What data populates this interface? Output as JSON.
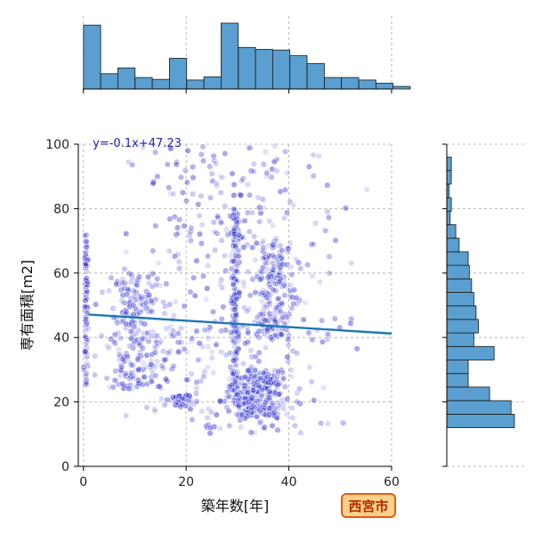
{
  "chart_data": [
    {
      "type": "scatter",
      "xlabel": "築年数[年]",
      "ylabel": "専有面積[m2]",
      "xlim": [
        -1,
        60
      ],
      "ylim": [
        0,
        100
      ],
      "xticks": [
        0,
        20,
        40,
        60
      ],
      "yticks": [
        0,
        20,
        40,
        60,
        80,
        100
      ],
      "grid": true,
      "point_color": "#2b2bd0",
      "clusters": [
        {
          "x_center": 0.5,
          "x_spread": 0.6,
          "y_min": 25,
          "y_max": 72,
          "count": 90
        },
        {
          "x_center": 10,
          "x_spread": 9,
          "y_min": 24,
          "y_max": 60,
          "count": 220
        },
        {
          "x_center": 19,
          "x_spread": 3,
          "y_min": 19,
          "y_max": 22,
          "count": 60
        },
        {
          "x_center": 29.5,
          "x_spread": 1.3,
          "y_min": 20,
          "y_max": 80,
          "count": 160
        },
        {
          "x_center": 34,
          "x_spread": 8,
          "y_min": 15,
          "y_max": 30,
          "count": 260
        },
        {
          "x_center": 37,
          "x_spread": 5,
          "y_min": 40,
          "y_max": 70,
          "count": 160
        },
        {
          "x_center": 30,
          "x_spread": 28,
          "y_min": 10,
          "y_max": 100,
          "count": 420
        }
      ],
      "regression": {
        "slope": -0.1,
        "intercept": 47.23,
        "x_range": [
          1,
          60
        ],
        "color": "#1f77b4"
      },
      "annotation": "y=-0.1x+47.23"
    },
    {
      "type": "bar",
      "orientation": "vertical",
      "bin_start": 0,
      "bin_width": 3.35,
      "values": [
        100,
        24,
        33,
        18,
        15,
        48,
        14,
        19,
        103,
        65,
        62,
        61,
        52,
        40,
        18,
        18,
        14,
        9,
        4
      ],
      "color": "#5a9fcf"
    },
    {
      "type": "bar",
      "orientation": "horizontal",
      "bin_start": 12,
      "bin_width": 4.2,
      "values": [
        60,
        57,
        38,
        19,
        19,
        42,
        24,
        28,
        26,
        24,
        22,
        20,
        19,
        11,
        8,
        3,
        4,
        2,
        4,
        4
      ],
      "color": "#5a9fcf"
    }
  ],
  "badge": {
    "label": "西宮市",
    "fill": "#ffd28c",
    "border": "#e85a12"
  }
}
